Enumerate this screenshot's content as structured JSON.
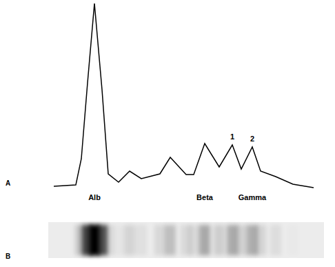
{
  "chart_data": {
    "type": "line",
    "x": [
      78,
      110,
      118,
      127,
      137,
      148,
      157,
      172,
      188,
      205,
      232,
      247,
      270,
      281,
      297,
      318,
      337,
      350,
      366,
      378,
      400,
      425,
      455
    ],
    "values": [
      0,
      2,
      40,
      150,
      265,
      140,
      18,
      6,
      22,
      11,
      18,
      42,
      17,
      17,
      62,
      28,
      60,
      25,
      57,
      22,
      14,
      3,
      -2
    ],
    "color": "#000000",
    "tick_labels": false,
    "grid": false,
    "annotations": [
      {
        "text": "1",
        "x": 337
      },
      {
        "text": "2",
        "x": 366
      }
    ],
    "region_labels": [
      {
        "text": "Alb",
        "x": 137
      },
      {
        "text": "Beta",
        "x": 297
      },
      {
        "text": "Gamma",
        "x": 366
      }
    ]
  },
  "panel_labels": [
    "A",
    "B"
  ]
}
